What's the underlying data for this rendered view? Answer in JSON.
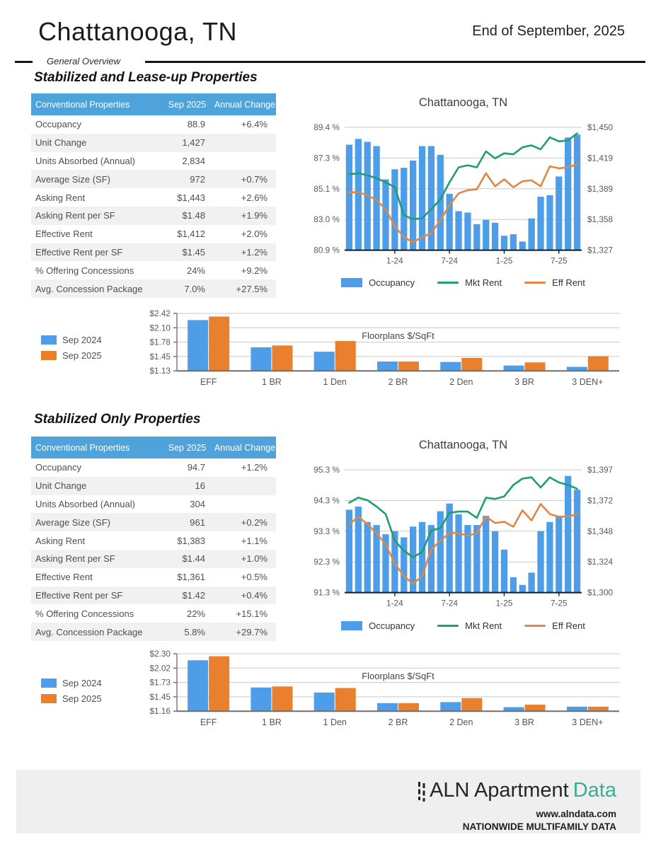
{
  "header": {
    "title": "Chattanooga, TN",
    "date_label": "End of September, 2025",
    "overview_label": "General Overview"
  },
  "sections": [
    {
      "heading": "Stabilized and Lease-up Properties",
      "table": {
        "columns": [
          "Conventional Properties",
          "Sep 2025",
          "Annual Change"
        ],
        "rows": [
          [
            "Occupancy",
            "88.9",
            "+6.4%"
          ],
          [
            "Unit Change",
            "1,427",
            ""
          ],
          [
            "Units Absorbed (Annual)",
            "2,834",
            ""
          ],
          [
            "Average Size (SF)",
            "972",
            "+0.7%"
          ],
          [
            "Asking Rent",
            "$1,443",
            "+2.6%"
          ],
          [
            "Asking Rent per SF",
            "$1.48",
            "+1.9%"
          ],
          [
            "Effective Rent",
            "$1,412",
            "+2.0%"
          ],
          [
            "Effective Rent per SF",
            "$1.45",
            "+1.2%"
          ],
          [
            "% Offering Concessions",
            "24%",
            "+9.2%"
          ],
          [
            "Avg. Concession Package",
            "7.0%",
            "+27.5%"
          ]
        ]
      }
    },
    {
      "heading": "Stabilized Only Properties",
      "table": {
        "columns": [
          "Conventional Properties",
          "Sep 2025",
          "Annual Change"
        ],
        "rows": [
          [
            "Occupancy",
            "94.7",
            "+1.2%"
          ],
          [
            "Unit Change",
            "16",
            ""
          ],
          [
            "Units Absorbed (Annual)",
            "304",
            ""
          ],
          [
            "Average Size (SF)",
            "961",
            "+0.2%"
          ],
          [
            "Asking Rent",
            "$1,383",
            "+1.1%"
          ],
          [
            "Asking Rent per SF",
            "$1.44",
            "+1.0%"
          ],
          [
            "Effective Rent",
            "$1,361",
            "+0.5%"
          ],
          [
            "Effective Rent per SF",
            "$1.42",
            "+0.4%"
          ],
          [
            "% Offering Concessions",
            "22%",
            "+15.1%"
          ],
          [
            "Avg. Concession Package",
            "5.8%",
            "+29.7%"
          ]
        ]
      }
    }
  ],
  "colors": {
    "bar_blue": "#4D9DE8",
    "line_green": "#219C77",
    "line_orange": "#E08747",
    "bar_orange": "#E8802E",
    "table_header_blue": "#4FA3DB",
    "logo_green": "#3CAD8E"
  },
  "chart_data": [
    {
      "type": "bar+line",
      "title": "Chattanooga, TN",
      "section": "Stabilized and Lease-up Properties",
      "months": [
        "8-23",
        "9-23",
        "10-23",
        "11-23",
        "12-23",
        "1-24",
        "2-24",
        "3-24",
        "4-24",
        "5-24",
        "6-24",
        "7-24",
        "8-24",
        "9-24",
        "10-24",
        "11-24",
        "12-24",
        "1-25",
        "2-25",
        "3-25",
        "4-25",
        "5-25",
        "6-25",
        "7-25",
        "8-25",
        "9-25"
      ],
      "x_tick_labels": [
        "1-24",
        "7-24",
        "1-25",
        "7-25"
      ],
      "x_tick_indices": [
        5,
        11,
        17,
        23
      ],
      "left_axis": {
        "name": "Occupancy (%)",
        "min": 80.9,
        "max": 89.4,
        "ticks": [
          "89.4 %",
          "87.3 %",
          "85.1 %",
          "83.0 %",
          "80.9 %"
        ]
      },
      "right_axis": {
        "name": "Rent ($)",
        "min": 1327,
        "max": 1450,
        "ticks": [
          "$1,450",
          "$1,419",
          "$1,389",
          "$1,358",
          "$1,327"
        ]
      },
      "series": [
        {
          "name": "Occupancy",
          "kind": "bar",
          "axis": "left",
          "color": "#4D9DE8",
          "values": [
            88.2,
            88.6,
            88.4,
            88.1,
            85.8,
            86.5,
            86.6,
            87.1,
            88.1,
            88.1,
            87.5,
            84.8,
            83.6,
            83.5,
            82.7,
            83.0,
            82.8,
            81.9,
            82.0,
            81.5,
            83.1,
            84.6,
            84.7,
            86.0,
            88.7,
            88.9
          ]
        },
        {
          "name": "Mkt Rent",
          "kind": "line",
          "axis": "right",
          "color": "#219C77",
          "values": [
            1403,
            1404,
            1402,
            1399,
            1395,
            1390,
            1362,
            1358,
            1359,
            1368,
            1378,
            1395,
            1410,
            1412,
            1410,
            1426,
            1419,
            1424,
            1423,
            1430,
            1432,
            1428,
            1440,
            1436,
            1437,
            1444
          ]
        },
        {
          "name": "Eff Rent",
          "kind": "line",
          "axis": "right",
          "color": "#E08747",
          "values": [
            1385,
            1385,
            1382,
            1377,
            1368,
            1351,
            1340,
            1335,
            1340,
            1344,
            1357,
            1372,
            1384,
            1387,
            1388,
            1404,
            1391,
            1398,
            1390,
            1396,
            1397,
            1391,
            1411,
            1409,
            1410,
            1413
          ]
        }
      ],
      "legend_position": "bottom",
      "grid": true
    },
    {
      "type": "bar",
      "title": "Floorplans $/SqFt",
      "section": "Stabilized and Lease-up Properties",
      "categories": [
        "EFF",
        "1 BR",
        "1 Den",
        "2 BR",
        "2 Den",
        "3 BR",
        "3 DEN+"
      ],
      "y_ticks": [
        "$2.42",
        "$2.10",
        "$1.78",
        "$1.45",
        "$1.13"
      ],
      "ymin": 1.13,
      "ymax": 2.42,
      "series": [
        {
          "name": "Sep 2024",
          "color": "#4D9DE8",
          "values": [
            2.27,
            1.66,
            1.56,
            1.34,
            1.33,
            1.25,
            1.22
          ]
        },
        {
          "name": "Sep 2025",
          "color": "#E8802E",
          "values": [
            2.35,
            1.7,
            1.8,
            1.34,
            1.42,
            1.32,
            1.46
          ]
        }
      ],
      "legend_position": "left",
      "grid": true
    },
    {
      "type": "bar+line",
      "title": "Chattanooga, TN",
      "section": "Stabilized Only Properties",
      "months": [
        "8-23",
        "9-23",
        "10-23",
        "11-23",
        "12-23",
        "1-24",
        "2-24",
        "3-24",
        "4-24",
        "5-24",
        "6-24",
        "7-24",
        "8-24",
        "9-24",
        "10-24",
        "11-24",
        "12-24",
        "1-25",
        "2-25",
        "3-25",
        "4-25",
        "5-25",
        "6-25",
        "7-25",
        "8-25",
        "9-25"
      ],
      "x_tick_labels": [
        "1-24",
        "7-24",
        "1-25",
        "7-25"
      ],
      "x_tick_indices": [
        5,
        11,
        17,
        23
      ],
      "left_axis": {
        "name": "Occupancy (%)",
        "min": 91.3,
        "max": 95.3,
        "ticks": [
          "95.3 %",
          "94.3 %",
          "93.3 %",
          "92.3 %",
          "91.3 %"
        ]
      },
      "right_axis": {
        "name": "Rent ($)",
        "min": 1300,
        "max": 1397,
        "ticks": [
          "$1,397",
          "$1,372",
          "$1,348",
          "$1,324",
          "$1,300"
        ]
      },
      "series": [
        {
          "name": "Occupancy",
          "kind": "bar",
          "axis": "left",
          "color": "#4D9DE8",
          "values": [
            94.0,
            94.1,
            93.6,
            93.5,
            93.2,
            93.3,
            93.1,
            93.45,
            93.6,
            93.5,
            93.95,
            94.2,
            93.85,
            93.5,
            93.5,
            93.8,
            93.3,
            92.7,
            91.8,
            91.55,
            91.95,
            93.3,
            93.6,
            93.8,
            95.1,
            94.65
          ]
        },
        {
          "name": "Mkt Rent",
          "kind": "line",
          "axis": "right",
          "color": "#219C77",
          "values": [
            1371,
            1375,
            1373,
            1368,
            1362,
            1341,
            1333,
            1328,
            1332,
            1349,
            1351,
            1363,
            1364,
            1364,
            1359,
            1375,
            1374,
            1376,
            1385,
            1390,
            1391,
            1383,
            1391,
            1387,
            1385,
            1382
          ]
        },
        {
          "name": "Eff Rent",
          "kind": "line",
          "axis": "right",
          "color": "#E08747",
          "values": [
            1354,
            1360,
            1354,
            1347,
            1338,
            1323,
            1313,
            1307,
            1313,
            1334,
            1341,
            1347,
            1347,
            1345,
            1347,
            1360,
            1355,
            1356,
            1352,
            1365,
            1357,
            1370,
            1362,
            1360,
            1360,
            1362
          ]
        }
      ],
      "legend_position": "bottom",
      "grid": true
    },
    {
      "type": "bar",
      "title": "Floorplans $/SqFt",
      "section": "Stabilized Only Properties",
      "categories": [
        "EFF",
        "1 BR",
        "1 Den",
        "2 BR",
        "2 Den",
        "3 BR",
        "3 DEN+"
      ],
      "y_ticks": [
        "$2.30",
        "$2.02",
        "$1.73",
        "$1.45",
        "$1.16"
      ],
      "ymin": 1.16,
      "ymax": 2.3,
      "series": [
        {
          "name": "Sep 2024",
          "color": "#4D9DE8",
          "values": [
            2.17,
            1.63,
            1.53,
            1.32,
            1.34,
            1.24,
            1.25
          ]
        },
        {
          "name": "Sep 2025",
          "color": "#E8802E",
          "values": [
            2.25,
            1.65,
            1.62,
            1.32,
            1.42,
            1.29,
            1.25
          ]
        }
      ],
      "legend_position": "left",
      "grid": true
    }
  ],
  "footer": {
    "logo_text": "ALN Apartment",
    "logo_accent": "Data",
    "website": "www.alndata.com",
    "tagline": "NATIONWIDE MULTIFAMILY DATA"
  }
}
